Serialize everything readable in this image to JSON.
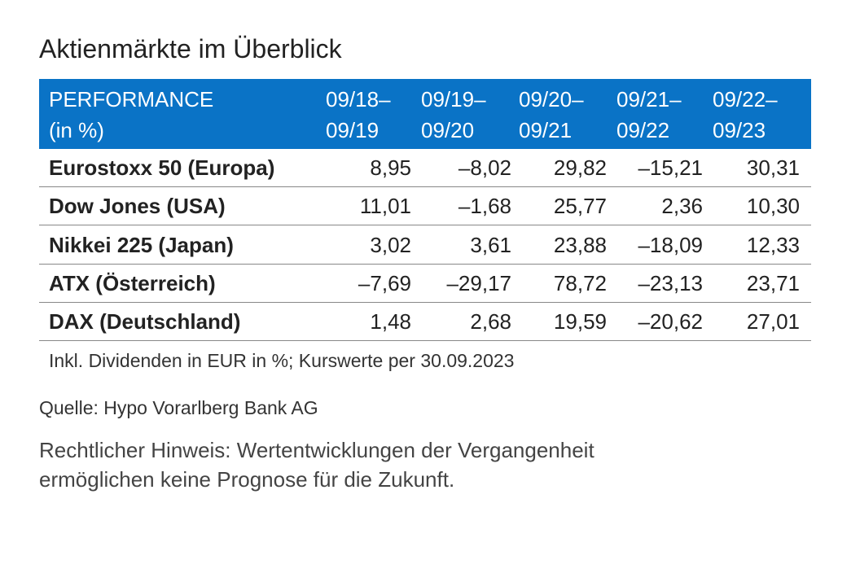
{
  "title": "Aktienmärkte im Überblick",
  "table": {
    "header": [
      [
        "PERFORMANCE",
        "(in %)"
      ],
      [
        "09/18–",
        "09/19"
      ],
      [
        "09/19–",
        "09/20"
      ],
      [
        "09/20–",
        "09/21"
      ],
      [
        "09/21–",
        "09/22"
      ],
      [
        "09/22–",
        "09/23"
      ]
    ],
    "rows": [
      [
        "Eurostoxx 50 (Europa)",
        "8,95",
        "–8,02",
        "29,82",
        "–15,21",
        "30,31"
      ],
      [
        "Dow Jones (USA)",
        "11,01",
        "–1,68",
        "25,77",
        "2,36",
        "10,30"
      ],
      [
        "Nikkei 225 (Japan)",
        "3,02",
        "3,61",
        "23,88",
        "–18,09",
        "12,33"
      ],
      [
        "ATX (Österreich)",
        "–7,69",
        "–29,17",
        "78,72",
        "–23,13",
        "23,71"
      ],
      [
        "DAX (Deutschland)",
        "1,48",
        "2,68",
        "19,59",
        "–20,62",
        "27,01"
      ]
    ],
    "footnote": "Inkl. Dividenden in EUR in %; Kurswerte per 30.09.2023"
  },
  "source": "Quelle: Hypo Vorarlberg Bank AG",
  "disclaimer": [
    "Rechtlicher Hinweis: Wertentwicklungen der Vergangenheit",
    "ermöglichen keine Prognose für die Zukunft."
  ]
}
